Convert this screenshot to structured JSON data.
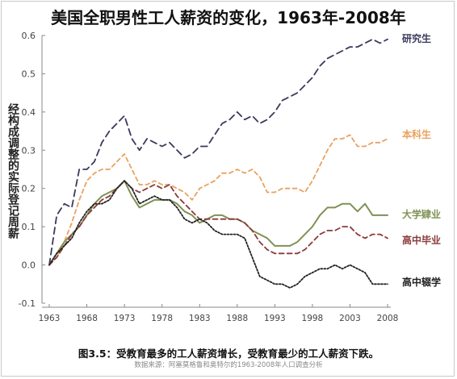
{
  "title": "美国全职男性工人薪资的变化，1963年-2008年",
  "ylabel": "经构成调整的实际登记周薪",
  "caption": "图3.5：受教育最多的工人薪资增长，受教育最少的工人薪资下跌。",
  "source": "数据来源：阿塞莫格鲁和奥特尔的1963-2008年人口调查分析",
  "chart_data": {
    "type": "line",
    "title": "美国全职男性工人薪资的变化，1963年-2008年",
    "xlabel": "",
    "ylabel": "经构成调整的实际登记周薪",
    "xlim": [
      1963,
      2008
    ],
    "ylim": [
      -0.1,
      0.6
    ],
    "xticks": [
      1963,
      1968,
      1973,
      1978,
      1983,
      1988,
      1993,
      1998,
      2003,
      2008
    ],
    "yticks": [
      "-0.1",
      "0.0",
      "0.1",
      "0.2",
      "0.3",
      "0.4",
      "0.5",
      "0.6"
    ],
    "grid": false,
    "legend": "inline labels at right",
    "x": [
      1963,
      1964,
      1965,
      1966,
      1967,
      1968,
      1969,
      1970,
      1971,
      1972,
      1973,
      1974,
      1975,
      1976,
      1977,
      1978,
      1979,
      1980,
      1981,
      1982,
      1983,
      1984,
      1985,
      1986,
      1987,
      1988,
      1989,
      1990,
      1991,
      1992,
      1993,
      1994,
      1995,
      1996,
      1997,
      1998,
      1999,
      2000,
      2001,
      2002,
      2003,
      2004,
      2005,
      2006,
      2007,
      2008
    ],
    "series": [
      {
        "name": "研究生",
        "color": "#3a3a5c",
        "dash": "8,5",
        "values": [
          0.0,
          0.13,
          0.16,
          0.15,
          0.25,
          0.25,
          0.27,
          0.32,
          0.35,
          0.37,
          0.39,
          0.33,
          0.3,
          0.33,
          0.32,
          0.31,
          0.32,
          0.3,
          0.28,
          0.29,
          0.31,
          0.31,
          0.34,
          0.37,
          0.38,
          0.4,
          0.38,
          0.39,
          0.37,
          0.38,
          0.4,
          0.43,
          0.44,
          0.45,
          0.47,
          0.49,
          0.52,
          0.54,
          0.55,
          0.56,
          0.57,
          0.57,
          0.58,
          0.59,
          0.58,
          0.59
        ]
      },
      {
        "name": "本科生",
        "color": "#e9a25e",
        "dash": "5,4",
        "values": [
          0.0,
          0.02,
          0.06,
          0.11,
          0.17,
          0.22,
          0.24,
          0.25,
          0.25,
          0.27,
          0.29,
          0.25,
          0.21,
          0.21,
          0.22,
          0.21,
          0.21,
          0.2,
          0.19,
          0.17,
          0.2,
          0.21,
          0.22,
          0.24,
          0.24,
          0.25,
          0.24,
          0.25,
          0.23,
          0.19,
          0.19,
          0.2,
          0.2,
          0.2,
          0.19,
          0.22,
          0.26,
          0.3,
          0.33,
          0.33,
          0.34,
          0.31,
          0.31,
          0.32,
          0.32,
          0.33
        ]
      },
      {
        "name": "大学肄业",
        "color": "#7f9155",
        "dash": "",
        "values": [
          0.0,
          0.03,
          0.06,
          0.08,
          0.1,
          0.13,
          0.16,
          0.18,
          0.19,
          0.2,
          0.22,
          0.18,
          0.15,
          0.16,
          0.17,
          0.17,
          0.17,
          0.16,
          0.14,
          0.13,
          0.11,
          0.12,
          0.13,
          0.13,
          0.12,
          0.12,
          0.11,
          0.09,
          0.08,
          0.07,
          0.05,
          0.05,
          0.05,
          0.06,
          0.08,
          0.1,
          0.13,
          0.15,
          0.15,
          0.16,
          0.16,
          0.14,
          0.16,
          0.13,
          0.13,
          0.13
        ]
      },
      {
        "name": "高中毕业",
        "color": "#8b3a3a",
        "dash": "6,4",
        "values": [
          0.0,
          0.02,
          0.05,
          0.08,
          0.1,
          0.13,
          0.15,
          0.17,
          0.18,
          0.2,
          0.22,
          0.2,
          0.19,
          0.2,
          0.21,
          0.2,
          0.21,
          0.18,
          0.16,
          0.14,
          0.12,
          0.12,
          0.12,
          0.12,
          0.12,
          0.12,
          0.11,
          0.09,
          0.06,
          0.04,
          0.03,
          0.03,
          0.03,
          0.03,
          0.04,
          0.06,
          0.08,
          0.09,
          0.09,
          0.1,
          0.1,
          0.08,
          0.07,
          0.08,
          0.08,
          0.07
        ]
      },
      {
        "name": "高中辍学",
        "color": "#222222",
        "dash": "2,2",
        "values": [
          0.0,
          0.03,
          0.05,
          0.07,
          0.11,
          0.14,
          0.16,
          0.16,
          0.17,
          0.2,
          0.22,
          0.2,
          0.16,
          0.17,
          0.18,
          0.17,
          0.17,
          0.15,
          0.12,
          0.11,
          0.12,
          0.11,
          0.09,
          0.08,
          0.08,
          0.08,
          0.07,
          0.02,
          -0.03,
          -0.04,
          -0.05,
          -0.05,
          -0.06,
          -0.05,
          -0.03,
          -0.02,
          -0.01,
          -0.01,
          0.0,
          -0.01,
          0.0,
          -0.01,
          -0.02,
          -0.05,
          -0.05,
          -0.05
        ]
      }
    ]
  }
}
